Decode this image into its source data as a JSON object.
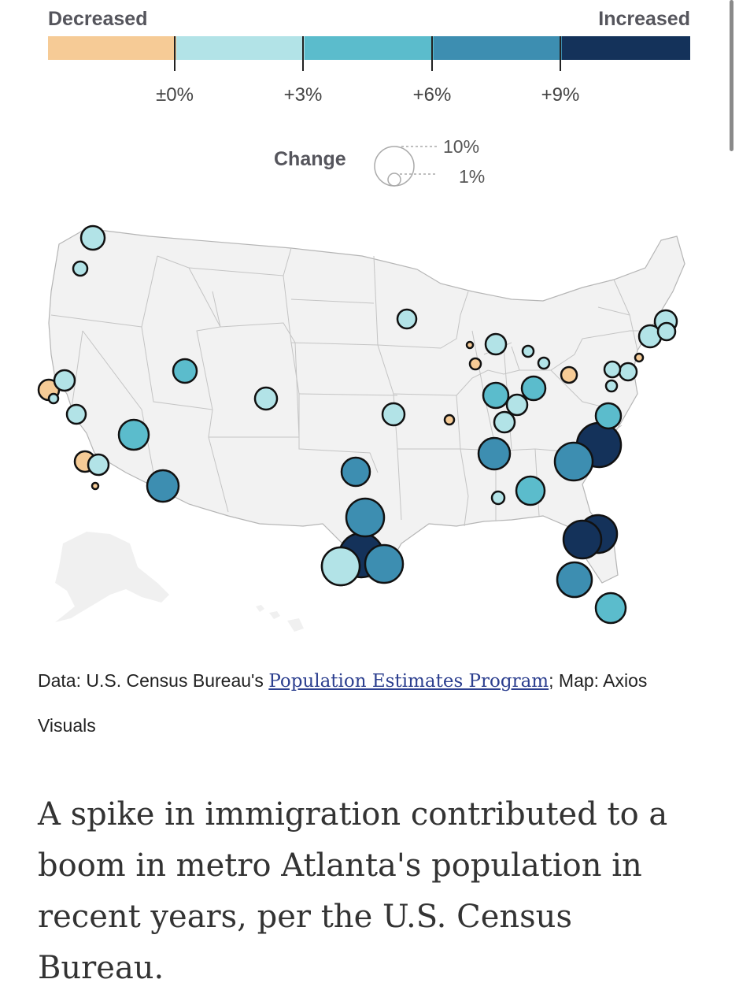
{
  "legend": {
    "decreased_label": "Decreased",
    "increased_label": "Increased",
    "colors": [
      "#f6cb96",
      "#b2e3e7",
      "#5bbccc",
      "#3d8eb1",
      "#14325a"
    ],
    "ticks": [
      "±0%",
      "+3%",
      "+6%",
      "+9%"
    ],
    "size_title": "Change",
    "size_large": "10%",
    "size_small": "1%"
  },
  "map": {
    "basemap": "United States states (lower 48) with Alaska and Hawaii insets, light gray fill",
    "symbol": "proportional circle sized by absolute percent change, colored by change bucket",
    "metros": [
      {
        "bucket": "0-3",
        "size": "medium"
      },
      {
        "bucket": "0-3",
        "size": "small"
      },
      {
        "bucket": "decrease",
        "size": "medium"
      },
      {
        "bucket": "0-3",
        "size": "medium"
      },
      {
        "bucket": "0-3",
        "size": "small"
      },
      {
        "bucket": "0-3",
        "size": "medium"
      },
      {
        "bucket": "decrease",
        "size": "medium"
      },
      {
        "bucket": "0-3",
        "size": "medium"
      },
      {
        "bucket": "decrease",
        "size": "tiny"
      },
      {
        "bucket": "3-6",
        "size": "large"
      },
      {
        "bucket": "3-6",
        "size": "medium"
      },
      {
        "bucket": "6-9",
        "size": "large"
      },
      {
        "bucket": "0-3",
        "size": "medium"
      },
      {
        "bucket": "0-3",
        "size": "medium"
      },
      {
        "bucket": "3-6",
        "size": "medium"
      },
      {
        "bucket": "6-9",
        "size": "large"
      },
      {
        "bucket": "9+",
        "size": "large"
      },
      {
        "bucket": "6-9",
        "size": "large"
      },
      {
        "bucket": "6-9",
        "size": "large"
      },
      {
        "bucket": "0-3",
        "size": "medium"
      },
      {
        "bucket": "0-3",
        "size": "medium"
      },
      {
        "bucket": "decrease",
        "size": "tiny"
      },
      {
        "bucket": "decrease",
        "size": "small"
      },
      {
        "bucket": "decrease",
        "size": "small"
      },
      {
        "bucket": "0-3",
        "size": "medium"
      },
      {
        "bucket": "0-3",
        "size": "small"
      },
      {
        "bucket": "0-3",
        "size": "small"
      },
      {
        "bucket": "3-6",
        "size": "medium"
      },
      {
        "bucket": "3-6",
        "size": "medium"
      },
      {
        "bucket": "0-3",
        "size": "medium"
      },
      {
        "bucket": "0-3",
        "size": "medium"
      },
      {
        "bucket": "6-9",
        "size": "large"
      },
      {
        "bucket": "0-3",
        "size": "small"
      },
      {
        "bucket": "3-6",
        "size": "medium"
      },
      {
        "bucket": "decrease",
        "size": "medium"
      },
      {
        "bucket": "0-3",
        "size": "medium"
      },
      {
        "bucket": "0-3",
        "size": "small"
      },
      {
        "bucket": "3-6",
        "size": "medium"
      },
      {
        "bucket": "9+",
        "size": "large"
      },
      {
        "bucket": "6-9",
        "size": "large"
      },
      {
        "bucket": "0-3",
        "size": "medium"
      },
      {
        "bucket": "decrease",
        "size": "small"
      },
      {
        "bucket": "0-3",
        "size": "medium"
      },
      {
        "bucket": "0-3",
        "size": "medium"
      },
      {
        "bucket": "0-3",
        "size": "medium"
      },
      {
        "bucket": "9+",
        "size": "large"
      },
      {
        "bucket": "9+",
        "size": "large"
      },
      {
        "bucket": "6-9",
        "size": "large"
      },
      {
        "bucket": "3-6",
        "size": "large"
      }
    ]
  },
  "source": {
    "prefix": "Data: U.S. Census Bureau's ",
    "link_text": "Population Estimates Program",
    "suffix": "; Map: Axios Visuals"
  },
  "article": {
    "lead": "A spike in immigration contributed to a boom in metro Atlanta's population in recent years, per the U.S. Census Bureau."
  }
}
